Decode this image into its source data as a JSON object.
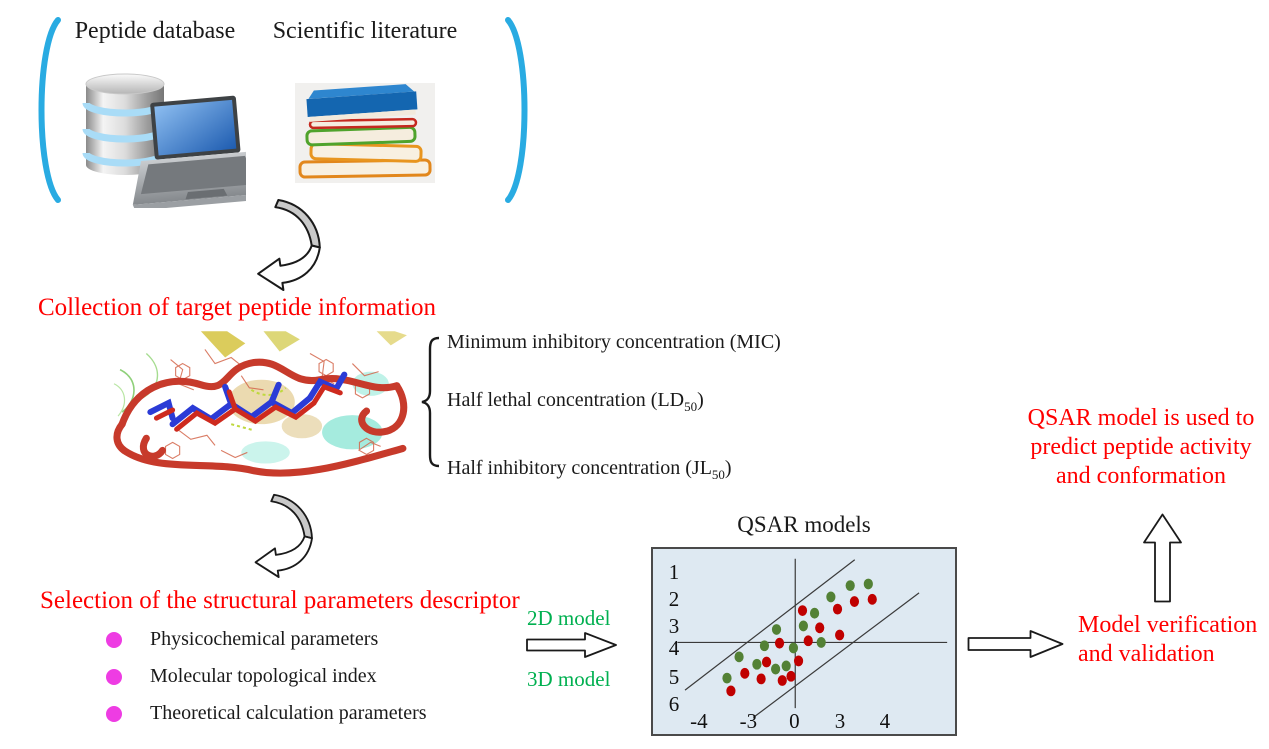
{
  "colors": {
    "red_text": "#FF0000",
    "green_text": "#00B050",
    "magenta_bullet": "#EE3CE3",
    "bracket_blue": "#29ABE2",
    "plot_bg": "#DEE9F2",
    "dot_green": "#538135",
    "dot_red": "#C00000",
    "plot_line": "#3A3A3A",
    "arrow_gray": "#C9C9C9"
  },
  "icons": {
    "left_bracket": "cyan-bracket-icon",
    "right_bracket": "cyan-bracket-icon",
    "database": "database-laptop-icon",
    "literature": "book-stack-icon",
    "curved_arrow": "curved-down-arrow-icon",
    "block_arrow_right": "hollow-right-arrow-icon",
    "block_arrow_up": "hollow-up-arrow-icon",
    "molecule": "peptide-structure-image",
    "brace": "left-curly-brace"
  },
  "top": {
    "peptide_database_label": "Peptide database",
    "scientific_literature_label": "Scientific literature"
  },
  "flow": {
    "collection_heading": "Collection of target peptide information",
    "selection_heading": "Selection of the structural parameters descriptor",
    "verification_lines": [
      "Model verification",
      "and validation"
    ],
    "prediction_lines": [
      "QSAR model is used to",
      "predict peptide activity",
      "and conformation"
    ]
  },
  "peptide_measures": [
    {
      "pre": "Minimum inhibitory concentration (MIC)",
      "sub": "",
      "post": ""
    },
    {
      "pre": "Half lethal concentration (LD",
      "sub": "50",
      "post": ")"
    },
    {
      "pre": "Half inhibitory concentration (JL",
      "sub": "50",
      "post": ")"
    }
  ],
  "descriptors": [
    "Physicochemical parameters",
    "Molecular topological index",
    "Theoretical calculation parameters"
  ],
  "model_arrow": {
    "top_label": "2D model",
    "bottom_label": "3D model"
  },
  "chart_data": {
    "type": "scatter",
    "title": "QSAR models",
    "plot_bg": "#DEE9F2",
    "line_color": "#3A3A3A",
    "note": "schematic scatter plot; point/line coordinates are percentages of the plot area (x right, y down)",
    "x_tick_labels": [
      "-4",
      "-3",
      "0",
      "3",
      "4"
    ],
    "x_tick_pos": [
      15.2,
      31.6,
      46.8,
      61.9,
      76.8
    ],
    "y_tick_labels": [
      "1",
      "2",
      "3",
      "4",
      "5",
      "6"
    ],
    "y_tick_pos": [
      13.2,
      27.4,
      42.1,
      54.2,
      69.5,
      84.2
    ],
    "axes": {
      "vline": {
        "x": 47.1,
        "y1": 5.3,
        "y2": 86.0
      },
      "hline": {
        "y": 50.5,
        "x1": 8.1,
        "x2": 97.4
      }
    },
    "band_lines": [
      [
        10.6,
        76.3,
        66.8,
        5.8
      ],
      [
        33.2,
        91.1,
        88.1,
        23.7
      ]
    ],
    "series": [
      {
        "name": "green points",
        "color": "#538135",
        "points": [
          [
            65.3,
            19.8
          ],
          [
            71.3,
            18.9
          ],
          [
            58.9,
            25.9
          ],
          [
            53.5,
            34.7
          ],
          [
            49.8,
            41.6
          ],
          [
            40.9,
            43.5
          ],
          [
            55.7,
            50.5
          ],
          [
            36.9,
            52.3
          ],
          [
            46.5,
            53.5
          ],
          [
            28.5,
            58.3
          ],
          [
            34.4,
            62.3
          ],
          [
            44.1,
            63.2
          ],
          [
            40.6,
            64.9
          ],
          [
            24.5,
            69.8
          ]
        ]
      },
      {
        "name": "red points",
        "color": "#C00000",
        "points": [
          [
            72.6,
            27.2
          ],
          [
            66.7,
            28.4
          ],
          [
            61.1,
            32.5
          ],
          [
            49.5,
            33.3
          ],
          [
            55.2,
            42.6
          ],
          [
            61.8,
            46.5
          ],
          [
            51.4,
            49.6
          ],
          [
            41.9,
            50.9
          ],
          [
            48.2,
            60.5
          ],
          [
            37.6,
            61.1
          ],
          [
            30.4,
            67.2
          ],
          [
            35.8,
            70.2
          ],
          [
            42.8,
            71.1
          ],
          [
            45.7,
            68.8
          ],
          [
            25.8,
            76.7
          ]
        ]
      }
    ]
  }
}
